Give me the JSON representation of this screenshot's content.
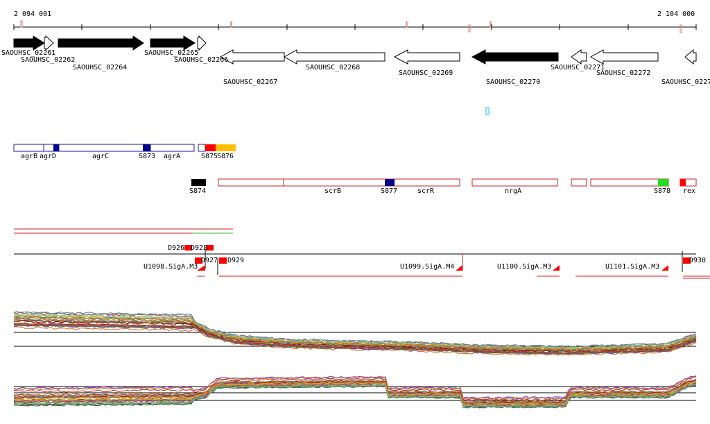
{
  "coordinates": {
    "start_label": "2 094 001",
    "end_label": "2 104 000"
  },
  "genes": [
    {
      "id": "SAOUHSC_02261",
      "strand": "+",
      "filled": true
    },
    {
      "id": "SAOUHSC_02262",
      "strand": "+",
      "filled": false
    },
    {
      "id": "SAOUHSC_02264",
      "strand": "+",
      "filled": true
    },
    {
      "id": "SAOUHSC_02265",
      "strand": "+",
      "filled": true
    },
    {
      "id": "SAOUHSC_02266",
      "strand": "+",
      "filled": false
    },
    {
      "id": "SAOUHSC_02267",
      "strand": "-",
      "filled": false
    },
    {
      "id": "SAOUHSC_02268",
      "strand": "-",
      "filled": false
    },
    {
      "id": "SAOUHSC_02269",
      "strand": "-",
      "filled": false
    },
    {
      "id": "SAOUHSC_02270",
      "strand": "-",
      "filled": true
    },
    {
      "id": "SAOUHSC_02271",
      "strand": "-",
      "filled": false
    },
    {
      "id": "SAOUHSC_02272",
      "strand": "-",
      "filled": false
    },
    {
      "id": "SAOUHSC_0227",
      "strand": "-",
      "filled": false
    }
  ],
  "annotation_labels": [
    "agrB",
    "agrD",
    "agrC",
    "S873",
    "agrA",
    "S875",
    "S876",
    "S874",
    "scrB",
    "S877",
    "scrR",
    "nrgA",
    "S878",
    "rex"
  ],
  "feature_labels": [
    "D926",
    "D928",
    "D927",
    "D929",
    "U1098.SigA.M3",
    "U1099.SigA.M4",
    "U1100.SigA.M3",
    "U1101.SigA.M3",
    "D930"
  ],
  "colors": {
    "gene_fill": "#000000",
    "annotation_outline_blue": "#1a1a9a",
    "annotation_outline_red": "#cc2222",
    "marker_dark_blue": "#00008b",
    "marker_red": "#ff0000",
    "marker_orange": "#ffc000",
    "marker_green": "#22dd22",
    "signal_cyan": "#00c8ff"
  }
}
